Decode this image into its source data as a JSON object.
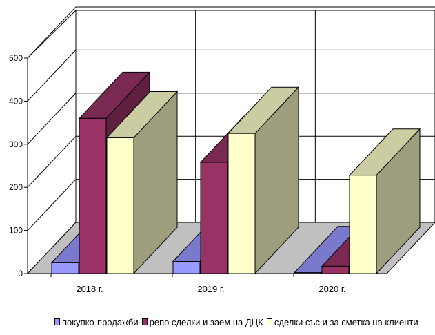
{
  "chart_data": {
    "type": "bar",
    "categories": [
      "2018 г.",
      "2019 г.",
      "2020 г."
    ],
    "series": [
      {
        "name": "покупко-продажби",
        "values": [
          25,
          28,
          2
        ],
        "color": "#9999ff"
      },
      {
        "name": "репо сделки и заем на ДЦК",
        "values": [
          360,
          258,
          17
        ],
        "color": "#993366"
      },
      {
        "name": "сделки със и за сметка на клиенти",
        "values": [
          315,
          325,
          228
        ],
        "color": "#ffffcc"
      }
    ],
    "yticks": [
      "0",
      "100",
      "200",
      "300",
      "400",
      "500"
    ],
    "ylim": [
      0,
      500
    ],
    "grid": true,
    "legend": "bottom",
    "style": "3d-column"
  }
}
